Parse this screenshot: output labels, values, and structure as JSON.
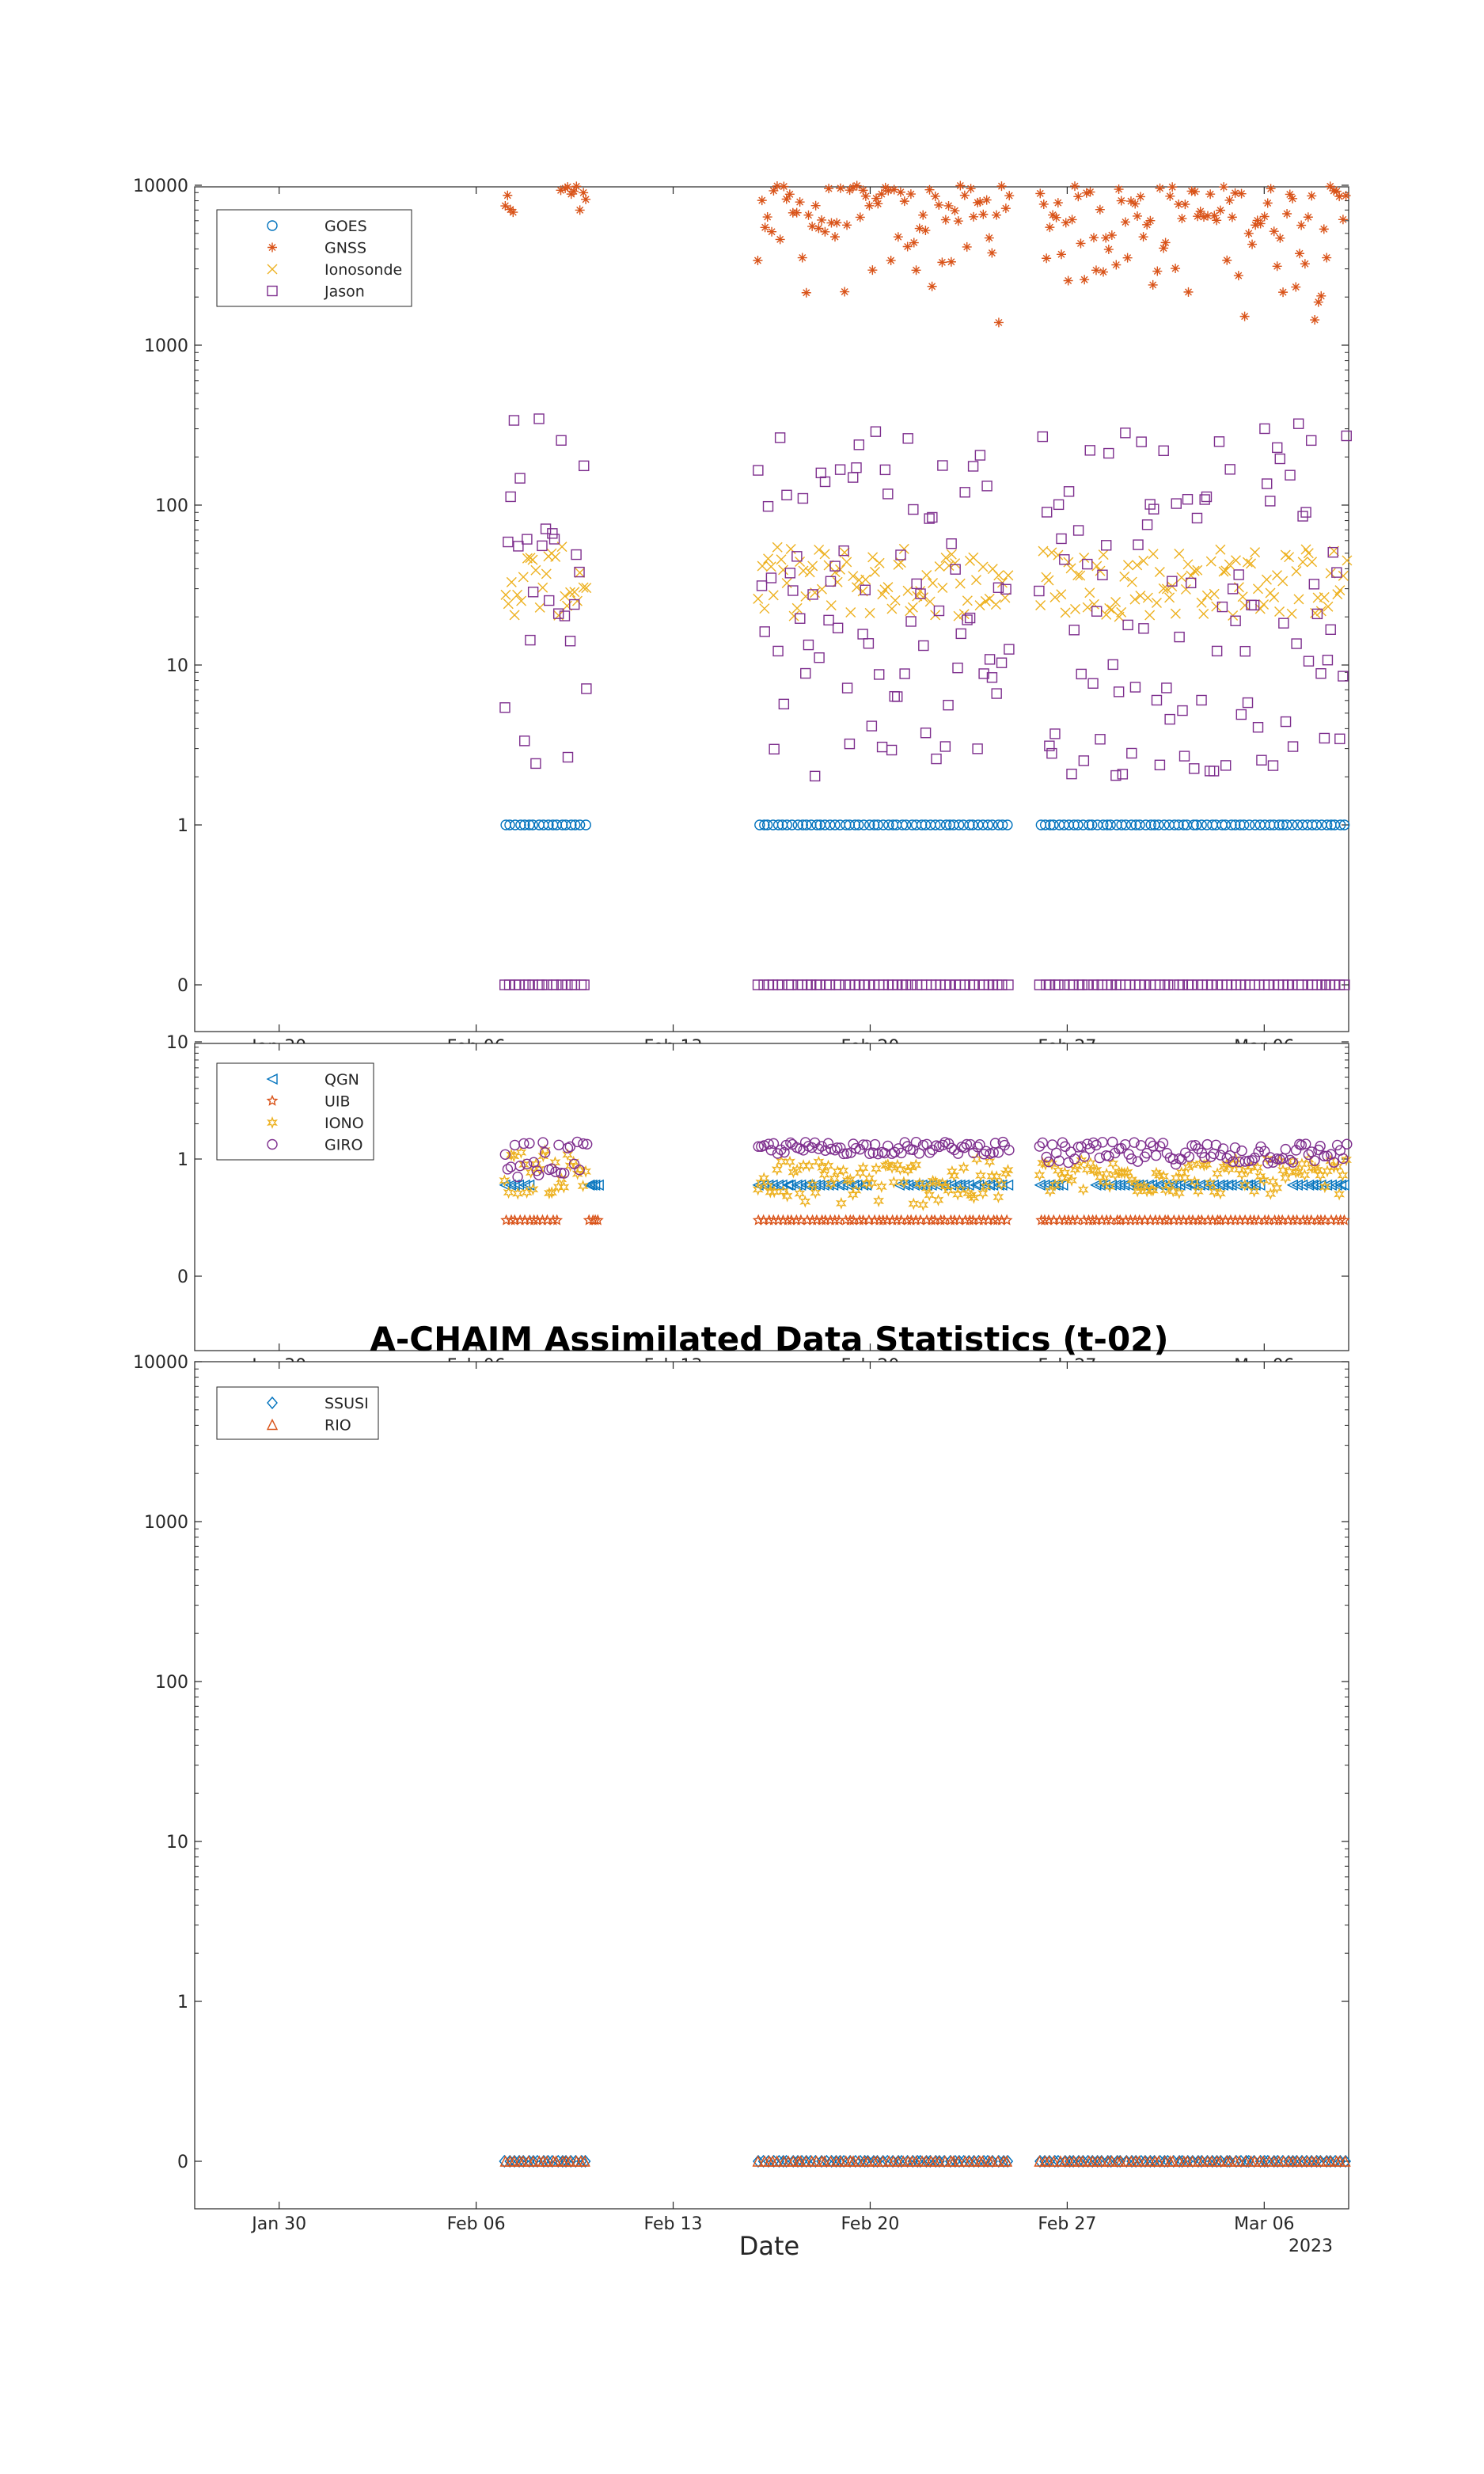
{
  "figure": {
    "title": "A-CHAIM Assimilated Data Statistics (t-02)",
    "xlabel": "Date",
    "year_label": "2023"
  },
  "chart_data": [
    {
      "type": "scatter",
      "y_scale": "log (0 shown at bottom)",
      "y_ticks": [
        "0",
        "1",
        "10",
        "100",
        "1000",
        "10000"
      ],
      "x_ticks": [
        "Jan 30",
        "Feb 06",
        "Feb 13",
        "Feb 20",
        "Feb 27",
        "Mar 06"
      ],
      "x_range": [
        "2023-01-27",
        "2023-03-09"
      ],
      "legend_position": "top-left",
      "grid": false,
      "series": [
        {
          "name": "GOES",
          "marker": "circle",
          "color": "#0072BD",
          "segments": [
            {
              "x": [
                "2023-02-07",
                "2023-02-10"
              ],
              "y": 1
            },
            {
              "x": [
                "2023-02-16",
                "2023-02-25"
              ],
              "y": 1
            },
            {
              "x": [
                "2023-02-26",
                "2023-03-09"
              ],
              "y": 1
            }
          ]
        },
        {
          "name": "GNSS",
          "marker": "asterisk",
          "color": "#D95319",
          "segments": [
            {
              "x": [
                "2023-02-07",
                "2023-02-07"
              ],
              "y_range": [
                2000,
                10000
              ]
            },
            {
              "x": [
                "2023-02-09",
                "2023-02-10"
              ],
              "y_range": [
                6000,
                10000
              ]
            },
            {
              "x": [
                "2023-02-16",
                "2023-02-25"
              ],
              "y_range": [
                700,
                10000
              ]
            },
            {
              "x": [
                "2023-02-26",
                "2023-03-09"
              ],
              "y_range": [
                700,
                10000
              ]
            }
          ]
        },
        {
          "name": "Ionosonde",
          "marker": "x",
          "color": "#EDB120",
          "segments": [
            {
              "x": [
                "2023-02-07",
                "2023-02-10"
              ],
              "y_range": [
                20,
                55
              ]
            },
            {
              "x": [
                "2023-02-16",
                "2023-02-25"
              ],
              "y_range": [
                20,
                55
              ]
            },
            {
              "x": [
                "2023-02-26",
                "2023-03-09"
              ],
              "y_range": [
                20,
                55
              ]
            }
          ]
        },
        {
          "name": "Jason",
          "marker": "square",
          "color": "#7E2F8E",
          "segments": [
            {
              "x": [
                "2023-02-07",
                "2023-02-10"
              ],
              "y_range": [
                2,
                400
              ]
            },
            {
              "x": [
                "2023-02-16",
                "2023-02-25"
              ],
              "y_range": [
                2,
                350
              ]
            },
            {
              "x": [
                "2023-02-26",
                "2023-03-09"
              ],
              "y_range": [
                2,
                330
              ]
            },
            {
              "x": [
                "2023-02-07",
                "2023-02-10"
              ],
              "y": 0
            },
            {
              "x": [
                "2023-02-16",
                "2023-02-25"
              ],
              "y": 0
            },
            {
              "x": [
                "2023-02-26",
                "2023-03-09"
              ],
              "y": 0
            }
          ]
        }
      ]
    },
    {
      "type": "scatter",
      "y_scale": "log (0 shown at bottom)",
      "y_ticks": [
        "0",
        "1",
        "10"
      ],
      "x_ticks": [
        "Jan 30",
        "Feb 06",
        "Feb 13",
        "Feb 20",
        "Feb 27",
        "Mar 06"
      ],
      "x_range": [
        "2023-01-27",
        "2023-03-09"
      ],
      "legend_position": "top-left",
      "grid": false,
      "series": [
        {
          "name": "QGN",
          "marker": "triangle-left",
          "color": "#0072BD",
          "segments": [
            {
              "x": [
                "2023-02-07",
                "2023-02-08"
              ],
              "y": 0.6
            },
            {
              "x": [
                "2023-02-10",
                "2023-02-10"
              ],
              "y": 0.6
            },
            {
              "x": [
                "2023-02-16",
                "2023-02-20"
              ],
              "y": 0.6
            },
            {
              "x": [
                "2023-02-21",
                "2023-02-25"
              ],
              "y": 0.6
            },
            {
              "x": [
                "2023-02-26",
                "2023-02-27"
              ],
              "y": 0.6
            },
            {
              "x": [
                "2023-02-28",
                "2023-03-06"
              ],
              "y": 0.6
            },
            {
              "x": [
                "2023-03-07",
                "2023-03-09"
              ],
              "y": 0.6
            }
          ]
        },
        {
          "name": "UIB",
          "marker": "pentagram",
          "color": "#D95319",
          "segments": [
            {
              "x": [
                "2023-02-07",
                "2023-02-09"
              ],
              "y": 0.3
            },
            {
              "x": [
                "2023-02-10",
                "2023-02-10"
              ],
              "y": 0.3
            },
            {
              "x": [
                "2023-02-16",
                "2023-02-25"
              ],
              "y": 0.3
            },
            {
              "x": [
                "2023-02-26",
                "2023-03-09"
              ],
              "y": 0.3
            }
          ]
        },
        {
          "name": "IONO",
          "marker": "hexagram",
          "color": "#EDB120",
          "segments": [
            {
              "x": [
                "2023-02-07",
                "2023-02-10"
              ],
              "y_range": [
                0.5,
                1.2
              ]
            },
            {
              "x": [
                "2023-02-16",
                "2023-02-25"
              ],
              "y_range": [
                0.4,
                1.0
              ]
            },
            {
              "x": [
                "2023-02-26",
                "2023-03-09"
              ],
              "y_range": [
                0.5,
                1.0
              ]
            }
          ]
        },
        {
          "name": "GIRO",
          "marker": "circle",
          "color": "#7E2F8E",
          "segments": [
            {
              "x": [
                "2023-02-07",
                "2023-02-10"
              ],
              "y_range": [
                0.7,
                1.4
              ]
            },
            {
              "x": [
                "2023-02-16",
                "2023-02-25"
              ],
              "y_range": [
                1.1,
                1.4
              ]
            },
            {
              "x": [
                "2023-02-26",
                "2023-03-09"
              ],
              "y_range": [
                0.9,
                1.4
              ]
            }
          ]
        }
      ]
    },
    {
      "type": "scatter",
      "y_scale": "log (0 shown at bottom)",
      "y_ticks": [
        "0",
        "1",
        "10",
        "100",
        "1000",
        "10000"
      ],
      "x_ticks": [
        "Jan 30",
        "Feb 06",
        "Feb 13",
        "Feb 20",
        "Feb 27",
        "Mar 06"
      ],
      "x_range": [
        "2023-01-27",
        "2023-03-09"
      ],
      "legend_position": "top-left",
      "grid": false,
      "series": [
        {
          "name": "SSUSI",
          "marker": "diamond",
          "color": "#0072BD",
          "segments": [
            {
              "x": [
                "2023-02-07",
                "2023-02-10"
              ],
              "y": 0
            },
            {
              "x": [
                "2023-02-16",
                "2023-02-25"
              ],
              "y": 0
            },
            {
              "x": [
                "2023-02-26",
                "2023-03-09"
              ],
              "y": 0
            }
          ]
        },
        {
          "name": "RIO",
          "marker": "triangle-up",
          "color": "#D95319",
          "segments": [
            {
              "x": [
                "2023-02-07",
                "2023-02-10"
              ],
              "y": 0
            },
            {
              "x": [
                "2023-02-16",
                "2023-02-25"
              ],
              "y": 0
            },
            {
              "x": [
                "2023-02-26",
                "2023-03-09"
              ],
              "y": 0
            }
          ]
        }
      ]
    }
  ]
}
